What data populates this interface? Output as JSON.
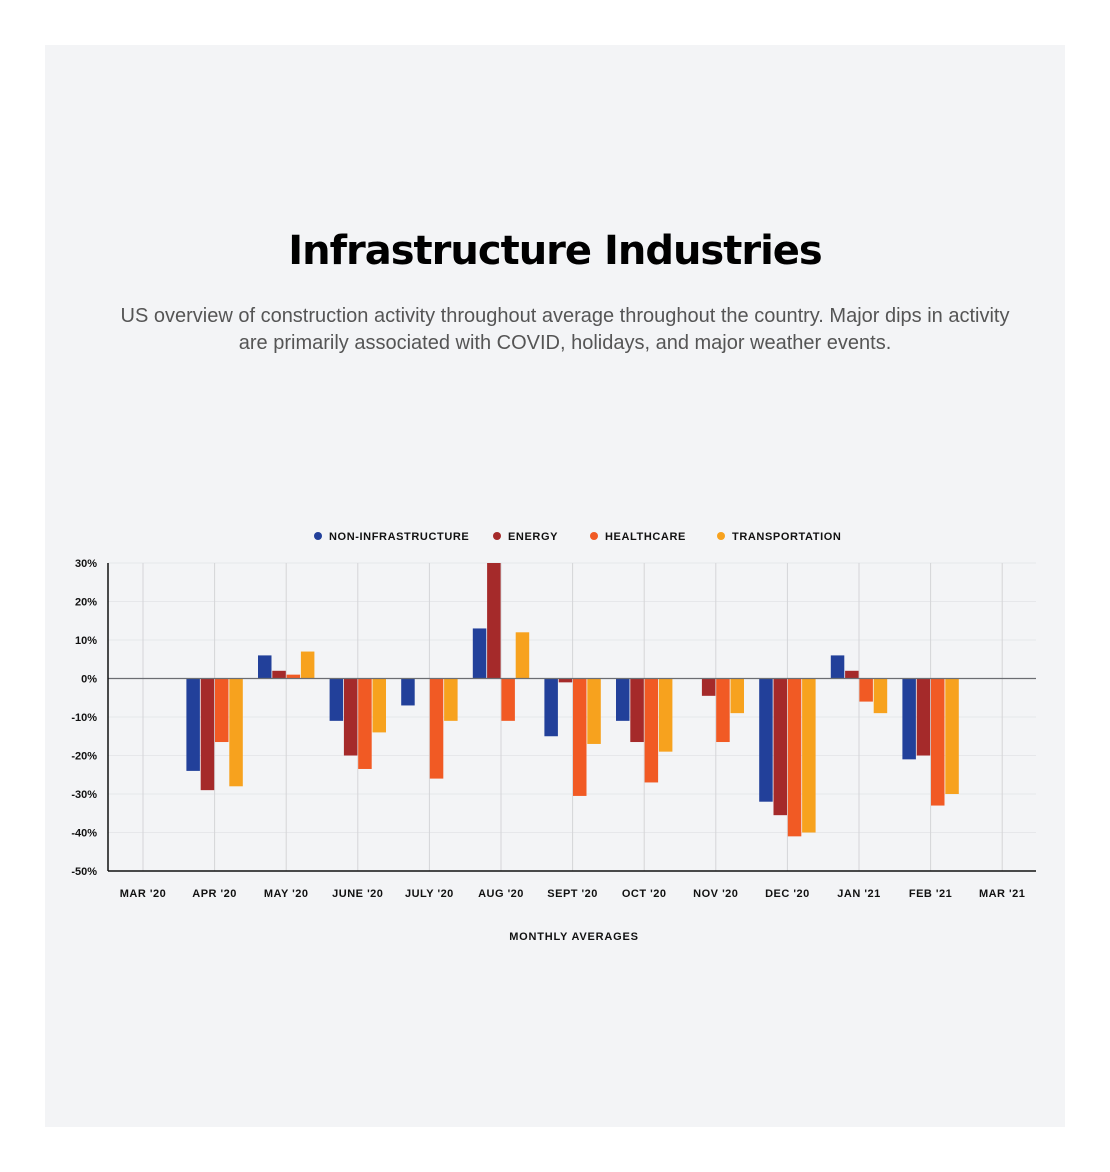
{
  "colors": {
    "non_infrastructure": "#22409a",
    "energy": "#a52a2a",
    "healthcare": "#f15a24",
    "transportation": "#f7a21e"
  },
  "chart_data": {
    "type": "bar",
    "title": "Infrastructure Industries",
    "subtitle": "US overview of construction activity throughout average throughout the country. Major dips in activity are primarily associated with COVID,  holidays, and major weather events.",
    "xlabel": "MONTHLY AVERAGES",
    "ylabel": "",
    "legend_position": "top-center",
    "grid": true,
    "ylim": [
      -50,
      30
    ],
    "yticks": [
      30,
      20,
      10,
      0,
      -10,
      -20,
      -30,
      -40,
      -50
    ],
    "ytick_labels": [
      "30%",
      "20%",
      "10%",
      "0%",
      "-10%",
      "-20%",
      "-30%",
      "-40%",
      "-50%"
    ],
    "categories": [
      "MAR '20",
      "APR '20",
      "MAY '20",
      "JUNE '20",
      "JULY '20",
      "AUG '20",
      "SEPT '20",
      "OCT '20",
      "NOV '20",
      "DEC '20",
      "JAN '21",
      "FEB '21",
      "MAR '21"
    ],
    "series": [
      {
        "name": "NON-INFRASTRUCTURE",
        "color_key": "non_infrastructure",
        "values": [
          0,
          -24,
          6,
          -11,
          -7,
          13,
          -15,
          -11,
          0,
          -32,
          6,
          -21,
          0
        ]
      },
      {
        "name": "ENERGY",
        "color_key": "energy",
        "values": [
          0,
          -29,
          2,
          -20,
          0,
          30,
          -1,
          -16.5,
          -4.5,
          -35.5,
          2,
          -20,
          0
        ]
      },
      {
        "name": "HEALTHCARE",
        "color_key": "healthcare",
        "values": [
          0,
          -16.5,
          1,
          -23.5,
          -26,
          -11,
          -30.5,
          -27,
          -16.5,
          -41,
          -6,
          -33,
          0
        ]
      },
      {
        "name": "TRANSPORTATION",
        "color_key": "transportation",
        "values": [
          0,
          -28,
          7,
          -14,
          -11,
          12,
          -17,
          -19,
          -9,
          -40,
          -9,
          -30,
          0
        ]
      }
    ]
  }
}
